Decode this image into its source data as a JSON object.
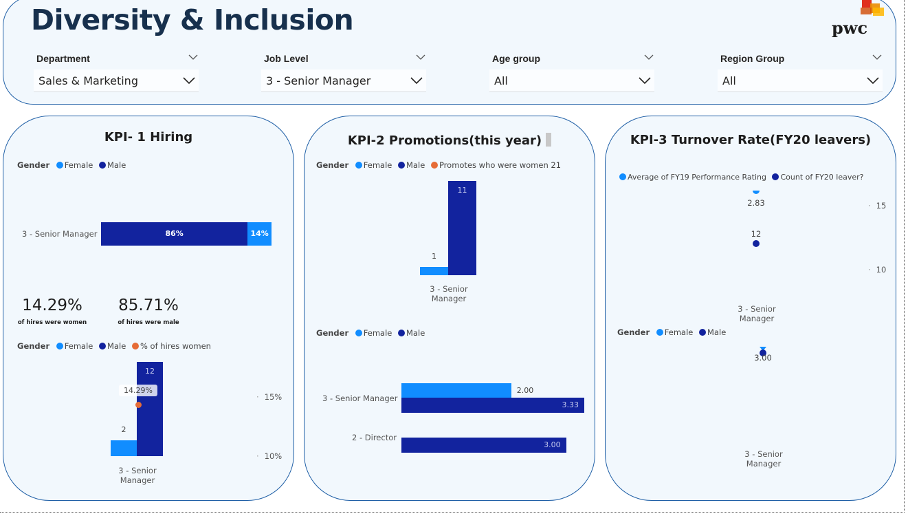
{
  "header": {
    "title": "Diversity & Inclusion",
    "logo_text": "pwc",
    "slicers": [
      {
        "label": "Department",
        "value": "Sales & Marketing"
      },
      {
        "label": "Job Level",
        "value": "3 - Senior Manager"
      },
      {
        "label": "Age group",
        "value": "All"
      },
      {
        "label": "Region Group",
        "value": "All"
      }
    ]
  },
  "colors": {
    "female": "#118dff",
    "male": "#12239e",
    "accent": "#e66c37",
    "card_bg": "#f2f8fd",
    "border": "#1f5fa6"
  },
  "kpi1": {
    "title": "KPI- 1 Hiring",
    "legend1": {
      "title": "Gender",
      "items": [
        "Female",
        "Male"
      ]
    },
    "stacked": {
      "category": "3 - Senior Manager",
      "male_pct_label": "86%",
      "female_pct_label": "14%",
      "male_pct": 86,
      "female_pct": 14
    },
    "cards": [
      {
        "value": "14.29%",
        "caption": "of hires were women"
      },
      {
        "value": "85.71%",
        "caption": "of hires were male"
      }
    ],
    "legend2": {
      "title": "Gender",
      "items": [
        "Female",
        "Male",
        "% of hires women"
      ]
    },
    "combo": {
      "category_line1": "3 - Senior",
      "category_line2": "Manager",
      "female": 2,
      "male": 12,
      "female_label": "2",
      "male_label": "12",
      "line_value_label": "14.29%",
      "line_value": 14.29,
      "right_ticks": [
        "15%",
        "10%"
      ]
    }
  },
  "kpi2": {
    "title": "KPI-2 Promotions(this year)",
    "legend1": {
      "title": "Gender",
      "items": [
        "Female",
        "Male",
        "Promotes who were women 21"
      ]
    },
    "column": {
      "category_line1": "3 - Senior",
      "category_line2": "Manager",
      "female": 1,
      "male": 11,
      "female_label": "1",
      "male_label": "11"
    },
    "legend2": {
      "title": "Gender",
      "items": [
        "Female",
        "Male"
      ]
    },
    "hbar": {
      "rows": [
        {
          "category": "3 - Senior Manager",
          "female": 2.0,
          "male": 3.33,
          "female_label": "2.00",
          "male_label": "3.33"
        },
        {
          "category": "2 - Director",
          "male": 3.0,
          "male_label": "3.00"
        }
      ]
    }
  },
  "kpi3": {
    "title": "KPI-3 Turnover Rate(FY20 leavers)",
    "legend1": {
      "items": [
        "Average of FY19 Performance Rating",
        "Count of FY20 leaver?"
      ]
    },
    "scatter1": {
      "rating_label": "2.83",
      "count_label": "12",
      "rating": 2.83,
      "count": 12,
      "category_line1": "3 - Senior",
      "category_line2": "Manager",
      "right_ticks": [
        "15",
        "10"
      ]
    },
    "legend2": {
      "title": "Gender",
      "items": [
        "Female",
        "Male"
      ]
    },
    "scatter2": {
      "value_label": "3.00",
      "value": 3.0,
      "category_line1": "3 - Senior",
      "category_line2": "Manager"
    }
  }
}
